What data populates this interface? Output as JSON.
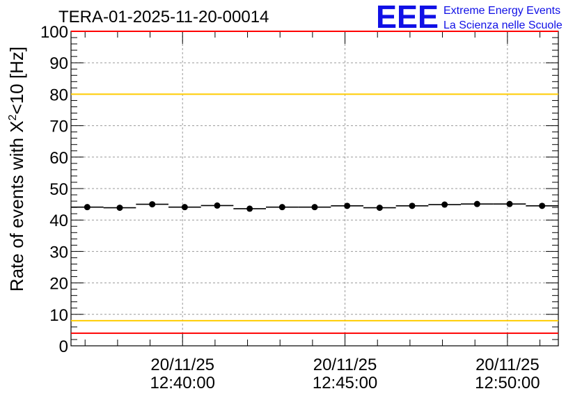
{
  "logo": {
    "mark": "EEE",
    "line1": "Extreme Energy Events",
    "line2": "La Scienza nelle Scuole",
    "color": "#1010e6"
  },
  "chart_data": {
    "type": "scatter",
    "title": "TERA-01-2025-11-20-00014",
    "ylabel_prefix": "Rate of events with X",
    "ylabel_sup": "2",
    "ylabel_suffix": "<10 [Hz]",
    "ylim": [
      0,
      100
    ],
    "ytick_labels": [
      "0",
      "10",
      "20",
      "30",
      "40",
      "50",
      "60",
      "70",
      "80",
      "90",
      "100"
    ],
    "xlim": [
      "12:36:34",
      "12:51:34"
    ],
    "xtick_labels": [
      {
        "time": "12:40:00",
        "line1": "20/11/25",
        "line2": "12:40:00"
      },
      {
        "time": "12:45:00",
        "line1": "20/11/25",
        "line2": "12:45:00"
      },
      {
        "time": "12:50:00",
        "line1": "20/11/25",
        "line2": "12:50:00"
      }
    ],
    "grid": true,
    "bin_width_s": 60,
    "series": [
      {
        "x": [
          "12:37:04",
          "12:38:04",
          "12:39:04",
          "12:40:04",
          "12:41:04",
          "12:42:04",
          "12:43:04",
          "12:44:04",
          "12:45:04",
          "12:46:04",
          "12:47:04",
          "12:48:04",
          "12:49:04",
          "12:50:04",
          "12:51:04"
        ],
        "y": [
          44.1,
          43.9,
          45.0,
          44.1,
          44.6,
          43.6,
          44.1,
          44.1,
          44.5,
          43.9,
          44.5,
          44.9,
          45.1,
          45.1,
          44.5
        ],
        "color": "#000000"
      }
    ],
    "reference_lines": [
      {
        "y": 100,
        "color": "#ff0000"
      },
      {
        "y": 80,
        "color": "#ffcc00"
      },
      {
        "y": 8,
        "color": "#ffcc00"
      },
      {
        "y": 4,
        "color": "#ff0000"
      }
    ]
  }
}
